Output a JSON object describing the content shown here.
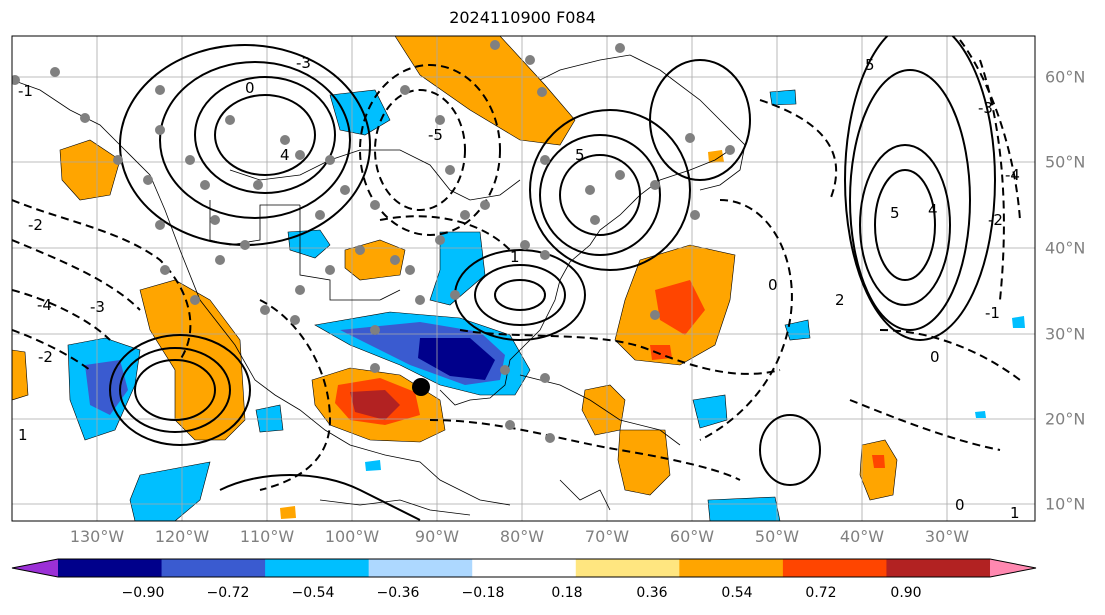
{
  "title": "2024110900 F084",
  "map": {
    "lon_labels": [
      "130°W",
      "120°W",
      "110°W",
      "100°W",
      "90°W",
      "80°W",
      "70°W",
      "60°W",
      "50°W",
      "40°W",
      "30°W"
    ],
    "lat_labels": [
      "60°N",
      "50°N",
      "40°N",
      "30°N",
      "20°N",
      "10°N"
    ],
    "contour_labels": [
      "-3",
      "0",
      "4",
      "-5",
      "-4",
      "-3",
      "-2",
      "1",
      "5",
      "5",
      "4",
      "5",
      "-4",
      "-3",
      "-2",
      "-1",
      "1",
      "0",
      "0",
      "2",
      "0",
      "1",
      "-2",
      "-1"
    ]
  },
  "colorbar": {
    "ticks": [
      "−0.90",
      "−0.72",
      "−0.54",
      "−0.36",
      "−0.18",
      "0.18",
      "0.36",
      "0.54",
      "0.72",
      "0.90"
    ],
    "colors": [
      "#9b30d6",
      "#00008b",
      "#3a5bd0",
      "#00bfff",
      "#add8ff",
      "#ffffff",
      "#ffe680",
      "#ffa500",
      "#ff4500",
      "#b22222",
      "#ff88b0"
    ]
  }
}
